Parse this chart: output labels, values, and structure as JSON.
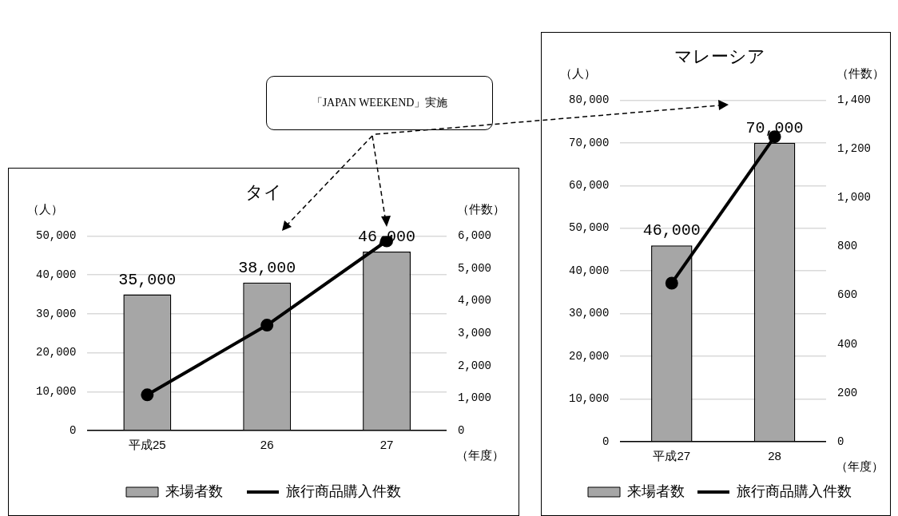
{
  "chart_data": [
    {
      "type": "bar",
      "title": "タイ",
      "ylabel": "（人）",
      "y2label": "（件数）",
      "xlabel": "（年度）",
      "categories": [
        "平成25",
        "26",
        "27"
      ],
      "series": [
        {
          "name": "来場者数",
          "color": "#a6a6a6",
          "values": [
            35000,
            38000,
            46000
          ],
          "value_labels": [
            "35,000",
            "38,000",
            "46,000"
          ]
        },
        {
          "name": "旅行商品購入件数",
          "type": "line",
          "axis": "y2",
          "color": "#000000",
          "marker": "circle",
          "values": [
            1100,
            3250,
            5850
          ]
        }
      ],
      "ylim": [
        0,
        50000
      ],
      "yticks": [
        0,
        {
          "value": 10000,
          "label": "10,000"
        },
        {
          "value": 20000,
          "label": "20,000"
        },
        {
          "value": 30000,
          "label": "30,000"
        },
        {
          "value": 40000,
          "label": "40,000"
        },
        {
          "value": 50000,
          "label": "50,000"
        }
      ],
      "y2lim": [
        0,
        6000
      ],
      "y2ticks": [
        0,
        {
          "value": 1000,
          "label": "1,000"
        },
        {
          "value": 2000,
          "label": "2,000"
        },
        {
          "value": 3000,
          "label": "3,000"
        },
        {
          "value": 4000,
          "label": "4,000"
        },
        {
          "value": 5000,
          "label": "5,000"
        },
        {
          "value": 6000,
          "label": "6,000"
        }
      ],
      "grid": "y",
      "legend": "bottom",
      "annotations": [
        "「JAPAN WEEKEND」実施"
      ]
    },
    {
      "type": "bar",
      "title": "マレーシア",
      "ylabel": "（人）",
      "y2label": "（件数）",
      "xlabel": "（年度）",
      "categories": [
        "平成27",
        "28"
      ],
      "series": [
        {
          "name": "来場者数",
          "color": "#a6a6a6",
          "values": [
            46000,
            70000
          ],
          "value_labels": [
            "46,000",
            "70,000"
          ]
        },
        {
          "name": "旅行商品購入件数",
          "type": "line",
          "axis": "y2",
          "color": "#000000",
          "marker": "circle",
          "values": [
            650,
            1250
          ]
        }
      ],
      "ylim": [
        0,
        80000
      ],
      "yticks": [
        0,
        {
          "value": 10000,
          "label": "10,000"
        },
        {
          "value": 20000,
          "label": "20,000"
        },
        {
          "value": 30000,
          "label": "30,000"
        },
        {
          "value": 40000,
          "label": "40,000"
        },
        {
          "value": 50000,
          "label": "50,000"
        },
        {
          "value": 60000,
          "label": "60,000"
        },
        {
          "value": 70000,
          "label": "70,000"
        },
        {
          "value": 80000,
          "label": "80,000"
        }
      ],
      "y2lim": [
        0,
        1400
      ],
      "y2ticks": [
        0,
        200,
        400,
        600,
        800,
        {
          "value": 1000,
          "label": "1,000"
        },
        {
          "value": 1200,
          "label": "1,200"
        },
        {
          "value": 1400,
          "label": "1,400"
        }
      ],
      "grid": "y",
      "legend": "bottom"
    }
  ]
}
